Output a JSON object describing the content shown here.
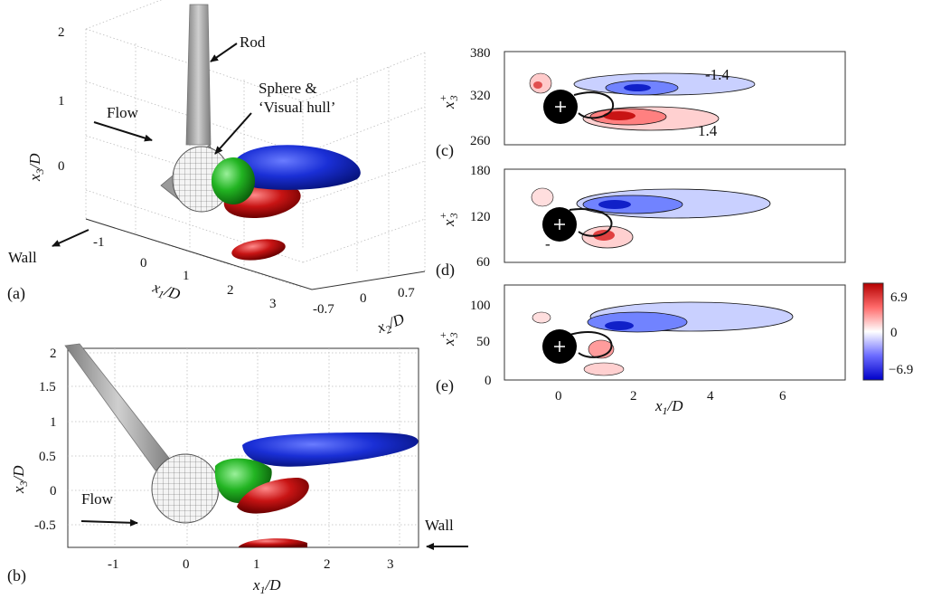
{
  "panel_a": {
    "label": "(a)",
    "z_ticks": [
      "2",
      "1",
      "0"
    ],
    "x_ticks": [
      "-1",
      "0",
      "1",
      "2",
      "3"
    ],
    "y_ticks": [
      "-0.7",
      "0",
      "0.7"
    ],
    "xlabel": "x1/D",
    "ylabel": "x3/D",
    "zlabel": "x2/D",
    "annotations": {
      "rod": "Rod",
      "sphere_line1": "Sphere &",
      "sphere_line2": "‘Visual hull’",
      "flow": "Flow",
      "wall": "Wall"
    }
  },
  "panel_b": {
    "label": "(b)",
    "y_ticks": [
      "2",
      "1.5",
      "1",
      "0.5",
      "0",
      "-0.5"
    ],
    "x_ticks": [
      "-1",
      "0",
      "1",
      "2",
      "3"
    ],
    "xlabel": "x1/D",
    "ylabel": "x3/D",
    "annotations": {
      "flow": "Flow",
      "wall": "Wall"
    }
  },
  "panel_c": {
    "label": "(c)",
    "y_ticks": [
      "380",
      "320",
      "260"
    ],
    "ylabel": "x3+",
    "contour_labels": [
      "-1.4",
      "1.4"
    ]
  },
  "panel_d": {
    "label": "(d)",
    "y_ticks": [
      "180",
      "120",
      "60"
    ],
    "ylabel": "x3+",
    "contour_labels": [
      "-"
    ]
  },
  "panel_e": {
    "label": "(e)",
    "y_ticks": [
      "100",
      "50",
      "0"
    ],
    "x_ticks": [
      "0",
      "2",
      "4",
      "6"
    ],
    "ylabel": "x3+",
    "xlabel": "x1/D"
  },
  "colorbar": {
    "ticks": [
      "6.9",
      "0",
      "−6.9"
    ],
    "colors": {
      "max": "#b40000",
      "mid": "#ffffff",
      "min": "#0000c8"
    }
  },
  "colors": {
    "green": "#22b422",
    "red": "#c81414",
    "blue": "#1428c8",
    "rod": "#9a9a9a"
  }
}
